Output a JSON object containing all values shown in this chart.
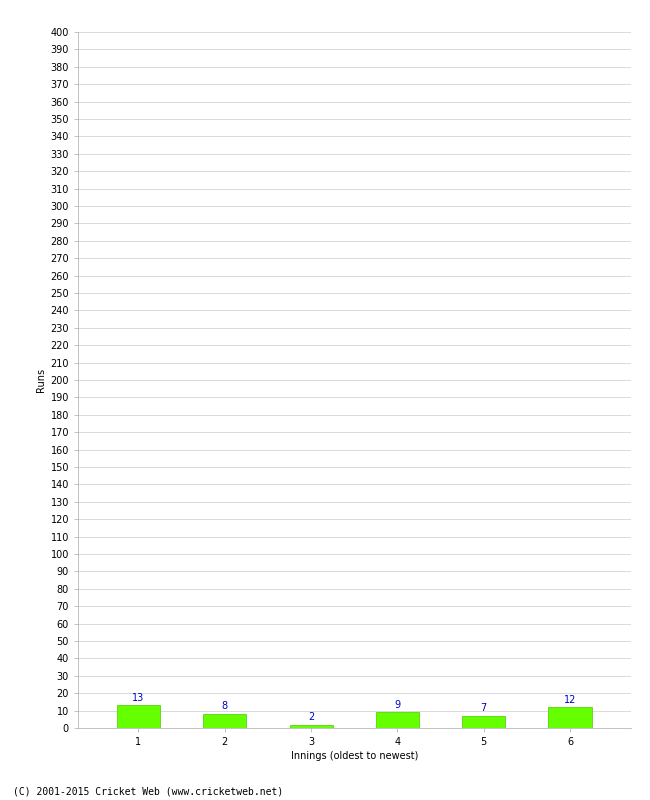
{
  "categories": [
    "1",
    "2",
    "3",
    "4",
    "5",
    "6"
  ],
  "values": [
    13,
    8,
    2,
    9,
    7,
    12
  ],
  "bar_color": "#66ff00",
  "bar_edge_color": "#44cc00",
  "label_color": "#0000cc",
  "ylabel": "Runs",
  "xlabel": "Innings (oldest to newest)",
  "footer": "(C) 2001-2015 Cricket Web (www.cricketweb.net)",
  "ylim": [
    0,
    400
  ],
  "ytick_step": 10,
  "background_color": "#ffffff",
  "grid_color": "#cccccc",
  "label_fontsize": 7,
  "axis_label_fontsize": 7,
  "footer_fontsize": 7,
  "bar_label_fontsize": 7
}
